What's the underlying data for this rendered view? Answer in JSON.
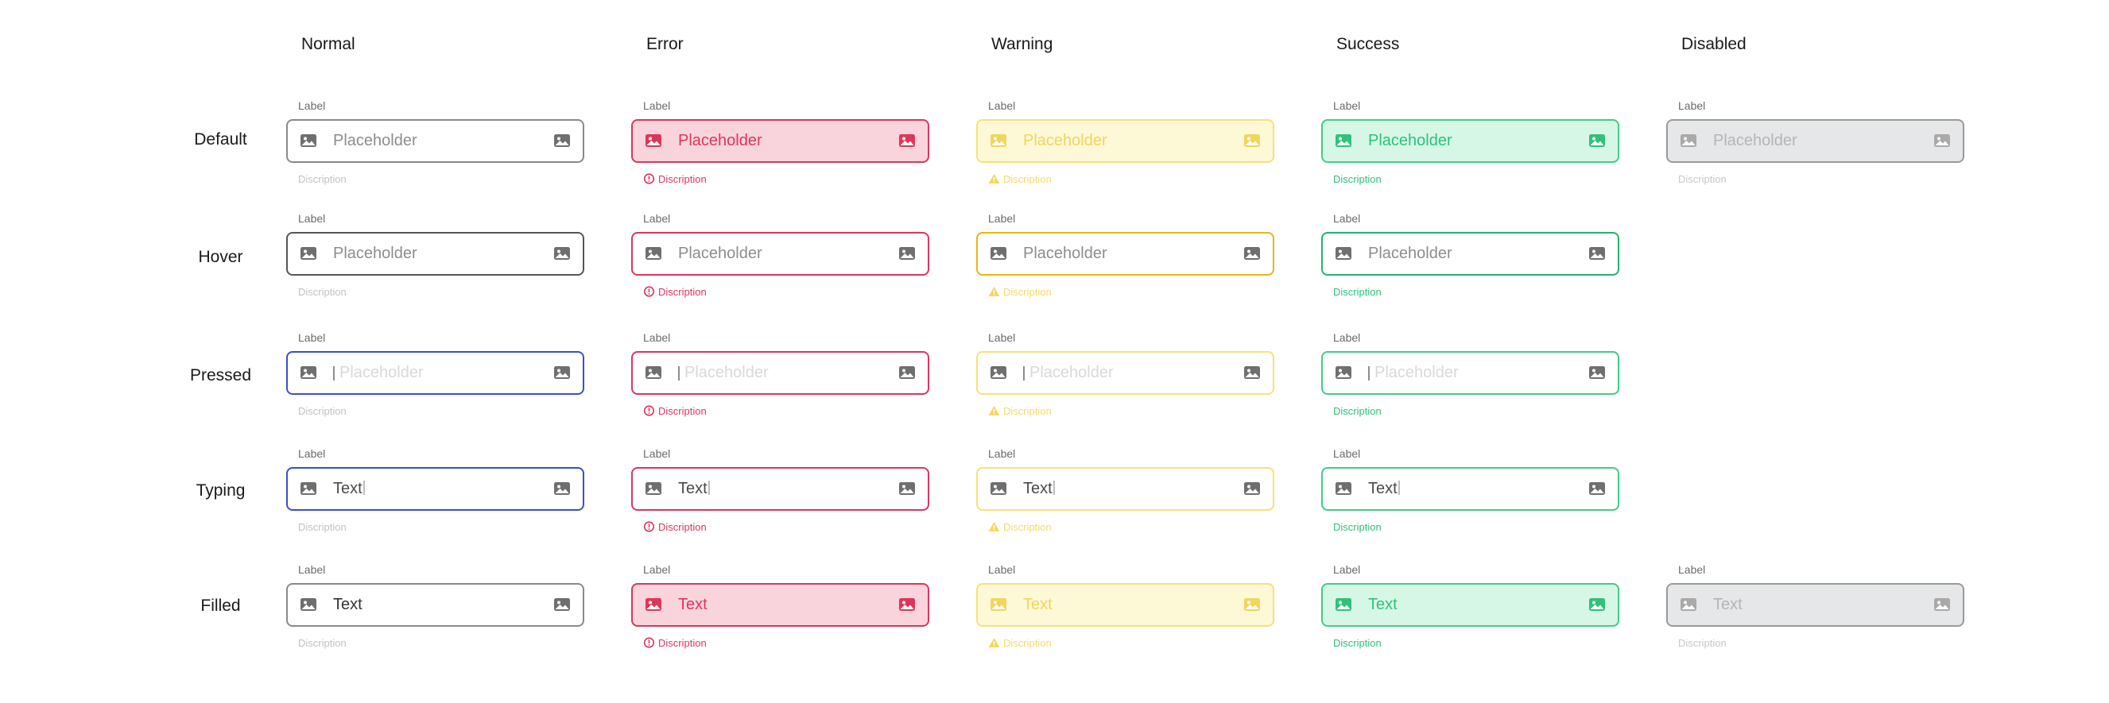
{
  "columns": [
    "Normal",
    "Error",
    "Warning",
    "Success",
    "Disabled"
  ],
  "rows": [
    "Default",
    "Hover",
    "Pressed",
    "Typing",
    "Filled"
  ],
  "field": {
    "label": "Label",
    "placeholder": "Placeholder",
    "typing_text": "Text",
    "filled_text": "Text",
    "description": "Discription"
  },
  "icons": {
    "leading": "image-icon",
    "trailing": "image-icon",
    "error_description": "alert-circle-icon",
    "warning_description": "alert-triangle-icon"
  },
  "colors": {
    "normal_border": "#8a8a8a",
    "focus_border": "#3a4ed1",
    "error": "#e0355a",
    "error_fill": "#fad4dc",
    "warning": "#f1d65c",
    "warning_fill": "#fdf8d6",
    "success": "#2fc27a",
    "success_fill": "#d6f7e6",
    "disabled_fill": "#e6e7e8"
  }
}
